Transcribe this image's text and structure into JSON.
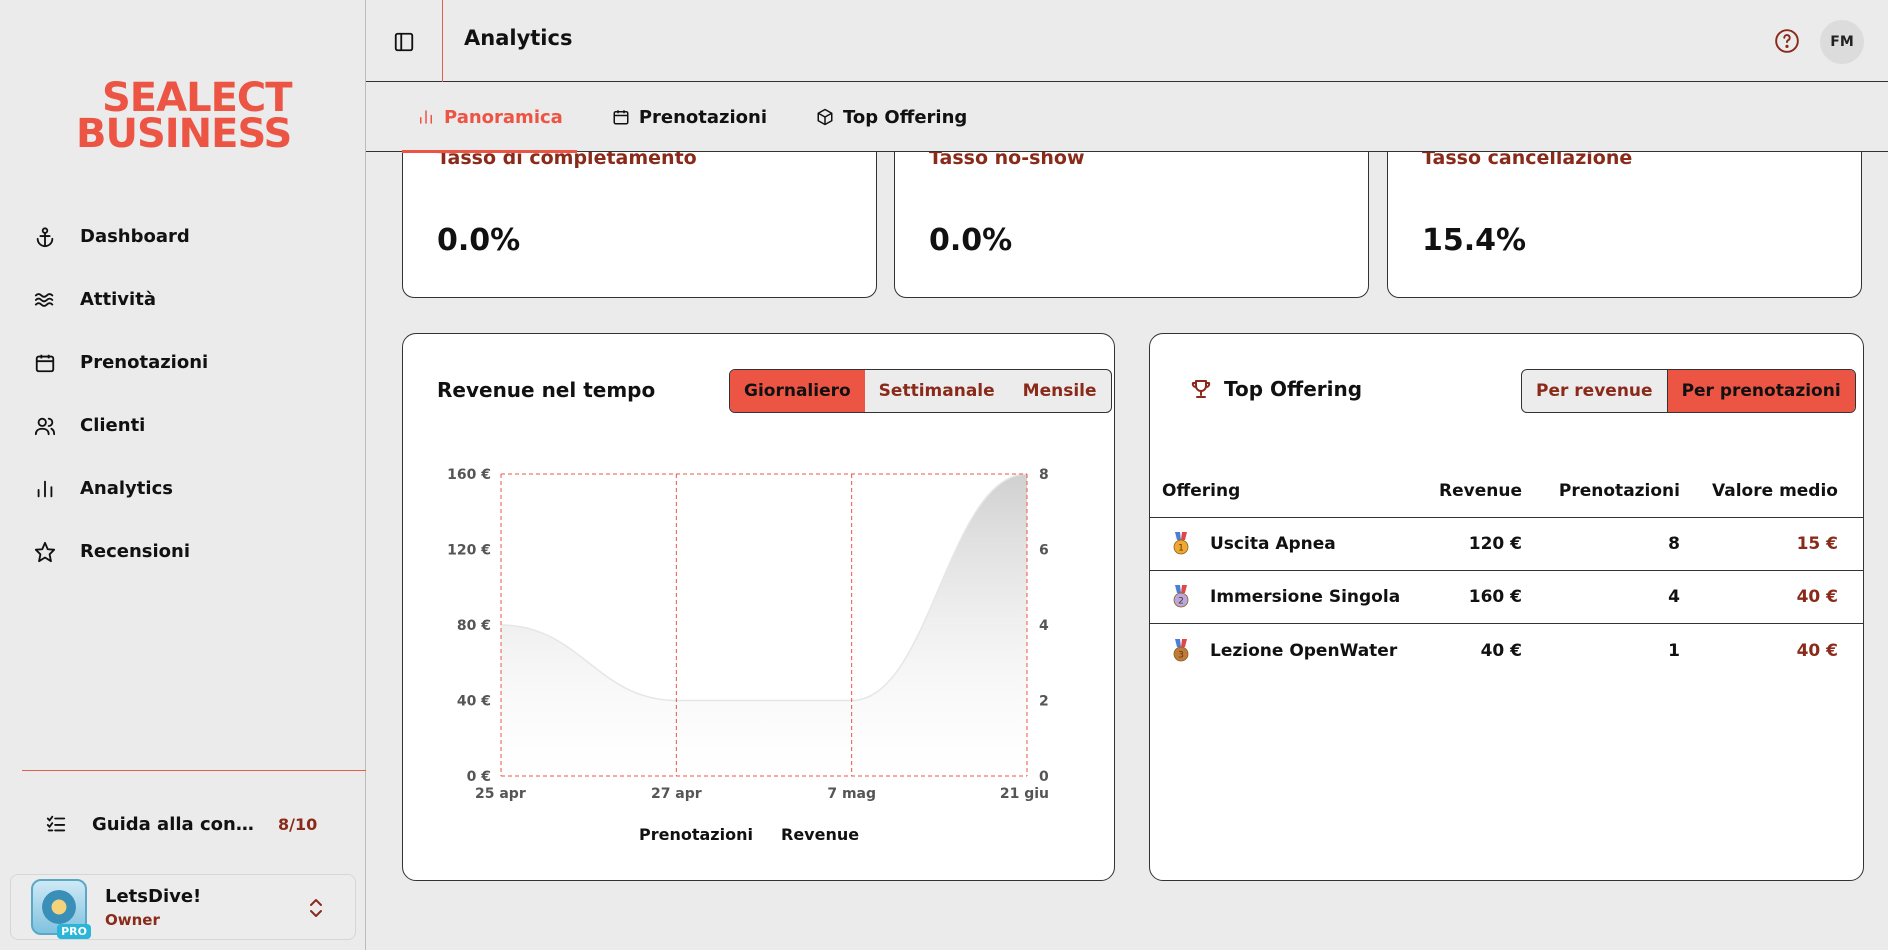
{
  "sidebar": {
    "logo_line1": "SEALECT",
    "logo_line2": "BUSINESS",
    "nav": [
      {
        "label": "Dashboard",
        "icon": "anchor-icon"
      },
      {
        "label": "Attività",
        "icon": "waves-icon"
      },
      {
        "label": "Prenotazioni",
        "icon": "calendar-icon"
      },
      {
        "label": "Clienti",
        "icon": "users-icon"
      },
      {
        "label": "Analytics",
        "icon": "bar-chart-icon"
      },
      {
        "label": "Recensioni",
        "icon": "star-icon"
      }
    ],
    "guide": {
      "label": "Guida alla configurazione",
      "count": "8/10"
    },
    "account": {
      "name": "LetsDive!",
      "role": "Owner",
      "badge": "PRO"
    }
  },
  "topbar": {
    "title": "Analytics",
    "user_initials": "FM"
  },
  "tabs": [
    {
      "label": "Panoramica",
      "active": true
    },
    {
      "label": "Prenotazioni",
      "active": false
    },
    {
      "label": "Top Offering",
      "active": false
    }
  ],
  "kpis": [
    {
      "title": "Tasso di completamento",
      "value": "0.0%"
    },
    {
      "title": "Tasso no-show",
      "value": "0.0%"
    },
    {
      "title": "Tasso cancellazione",
      "value": "15.4%"
    }
  ],
  "revenue_card": {
    "title": "Revenue nel tempo",
    "periods": [
      "Giornaliero",
      "Settimanale",
      "Mensile"
    ],
    "active_period": "Giornaliero"
  },
  "chart_data": {
    "type": "area",
    "categories": [
      "25 apr",
      "27 apr",
      "7 mag",
      "21 giu"
    ],
    "series": [
      {
        "name": "Revenue",
        "axis": "left",
        "values": [
          80,
          40,
          40,
          160
        ]
      },
      {
        "name": "Prenotazioni",
        "axis": "right",
        "values": [
          0,
          0,
          0,
          0
        ]
      }
    ],
    "y_left_ticks": [
      "0 €",
      "40 €",
      "80 €",
      "120 €",
      "160 €"
    ],
    "y_right_ticks": [
      "0",
      "2",
      "4",
      "6",
      "8"
    ],
    "ylim_left": [
      0,
      160
    ],
    "ylim_right": [
      0,
      8
    ],
    "legend": [
      "Prenotazioni",
      "Revenue"
    ],
    "legend_position": "bottom",
    "colors": {
      "grid": "#ec5444",
      "area": "#d0d0d0"
    }
  },
  "offer_card": {
    "title": "Top Offering",
    "modes": [
      "Per revenue",
      "Per prenotazioni"
    ],
    "active_mode": "Per prenotazioni",
    "columns": [
      "Offering",
      "Revenue",
      "Prenotazioni",
      "Valore medio"
    ],
    "rows": [
      {
        "rank": "1",
        "name": "Uscita Apnea",
        "revenue": "120 €",
        "bookings": "8",
        "avg": "15 €",
        "medal_color": "#f0a830"
      },
      {
        "rank": "2",
        "name": "Immersione Singola",
        "revenue": "160 €",
        "bookings": "4",
        "avg": "40 €",
        "medal_color": "#b9a7e0"
      },
      {
        "rank": "3",
        "name": "Lezione OpenWater",
        "revenue": "40 €",
        "bookings": "1",
        "avg": "40 €",
        "medal_color": "#c07a3a"
      }
    ]
  },
  "accent": "#ec5444"
}
